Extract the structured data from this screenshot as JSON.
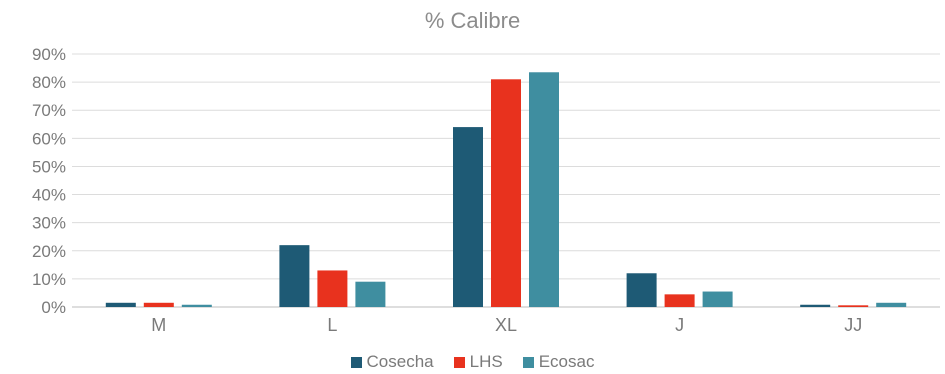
{
  "chart_data": {
    "type": "bar",
    "title": "% Calibre",
    "xlabel": "",
    "ylabel": "",
    "categories": [
      "M",
      "L",
      "XL",
      "J",
      "JJ"
    ],
    "ylim": [
      0,
      90
    ],
    "yticks": [
      "0%",
      "10%",
      "20%",
      "30%",
      "40%",
      "50%",
      "60%",
      "70%",
      "80%",
      "90%"
    ],
    "grid": true,
    "legend_position": "bottom",
    "series": [
      {
        "name": "Cosecha",
        "color": "#1e5a75",
        "values": [
          1.5,
          22,
          64,
          12,
          0.8
        ]
      },
      {
        "name": "LHS",
        "color": "#e8321e",
        "values": [
          1.5,
          13,
          81,
          4.5,
          0.6
        ]
      },
      {
        "name": "Ecosac",
        "color": "#3f8ea0",
        "values": [
          0.8,
          9,
          83.5,
          5.5,
          1.5
        ]
      }
    ]
  }
}
